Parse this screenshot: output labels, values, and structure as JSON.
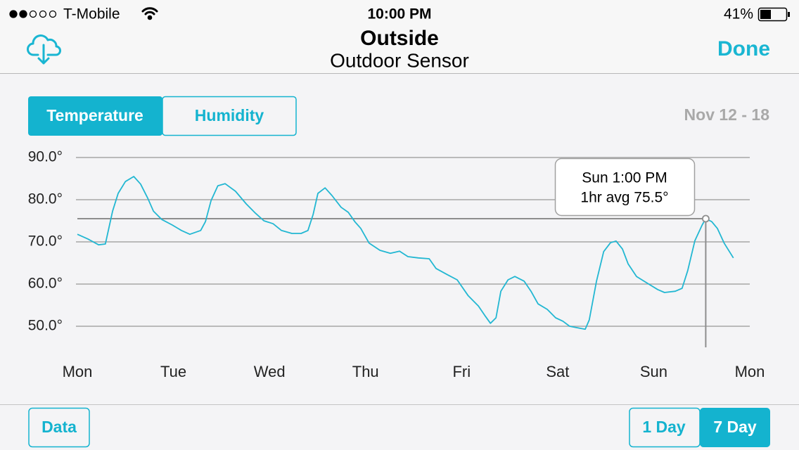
{
  "status_bar": {
    "carrier": "T-Mobile",
    "time": "10:00 PM",
    "battery": "41%"
  },
  "nav": {
    "title": "Outside",
    "subtitle": "Outdoor Sensor",
    "done": "Done"
  },
  "tabs": [
    "Temperature",
    "Humidity"
  ],
  "date_range": "Nov 12 - 18",
  "chart_data": {
    "type": "line",
    "x": [
      0,
      2.6,
      5.3,
      7.0,
      8.8,
      10.2,
      12.0,
      14.1,
      15.8,
      17.6,
      19.0,
      21.1,
      23.7,
      26.0,
      28.1,
      30.8,
      32.0,
      33.4,
      35.1,
      36.9,
      39.5,
      42.2,
      44.5,
      46.6,
      48.9,
      51.0,
      53.6,
      55.9,
      57.6,
      58.9,
      60.1,
      61.9,
      63.6,
      65.9,
      67.7,
      69.4,
      70.8,
      72.9,
      75.6,
      78.2,
      80.5,
      82.6,
      85.2,
      87.9,
      89.6,
      92.3,
      94.9,
      97.6,
      100.2,
      102.0,
      103.2,
      104.6,
      105.8,
      107.6,
      109.3,
      111.6,
      113.4,
      115.1,
      117.4,
      119.5,
      121.3,
      123.0,
      125.7,
      126.9,
      127.9,
      129.7,
      131.5,
      133.2,
      134.6,
      136.2,
      137.6,
      139.7,
      142.4,
      145.0,
      146.7,
      149.4,
      151.1,
      152.5,
      154.3,
      156.1,
      157.0,
      158.5,
      159.9,
      161.6,
      163.9
    ],
    "series": [
      {
        "color": "#22b7d2",
        "values": [
          71.8,
          70.7,
          69.3,
          69.5,
          77.3,
          81.5,
          84.3,
          85.5,
          83.7,
          80.3,
          77.3,
          75.3,
          74,
          72.7,
          71.8,
          72.7,
          74.8,
          79.8,
          83.3,
          83.8,
          82,
          79,
          76.8,
          75,
          74.3,
          72.7,
          72,
          72,
          72.7,
          76.5,
          81.5,
          82.8,
          81,
          78.2,
          77,
          74.7,
          73.2,
          69.7,
          68,
          67.3,
          67.8,
          66.5,
          66.2,
          66,
          63.7,
          62.3,
          61,
          57.3,
          54.8,
          52.3,
          50.7,
          52,
          58.3,
          61,
          61.8,
          60.7,
          58.2,
          55.3,
          54,
          52,
          51.2,
          50,
          49.5,
          49.3,
          51.5,
          60.7,
          67.7,
          69.8,
          70.2,
          68.3,
          64.8,
          61.8,
          60.2,
          58.7,
          58,
          58.3,
          59,
          63.2,
          70.3,
          74,
          75.5,
          74.8,
          73.2,
          69.7,
          66.2
        ]
      }
    ],
    "xlim": [
      0,
      168
    ],
    "xticks": [
      {
        "value": 0,
        "label": "Mon"
      },
      {
        "value": 24,
        "label": "Tue"
      },
      {
        "value": 48,
        "label": "Wed"
      },
      {
        "value": 72,
        "label": "Thu"
      },
      {
        "value": 96,
        "label": "Fri"
      },
      {
        "value": 120,
        "label": "Sat"
      },
      {
        "value": 144,
        "label": "Sun"
      },
      {
        "value": 168,
        "label": "Mon"
      }
    ],
    "ylim": [
      45,
      92
    ],
    "yticks": [
      {
        "value": 50,
        "label": "50.0°"
      },
      {
        "value": 60,
        "label": "60.0°"
      },
      {
        "value": 70,
        "label": "70.0°"
      },
      {
        "value": 80,
        "label": "80.0°"
      },
      {
        "value": 90,
        "label": "90.0°"
      }
    ],
    "grid": true,
    "cursor": {
      "x": 157,
      "y": 75.5,
      "label": "Sun 1:00 PM",
      "value_label": "1hr avg 75.5°"
    }
  },
  "bottom": {
    "data": "Data",
    "ranges": [
      "1 Day",
      "7 Day"
    ]
  }
}
